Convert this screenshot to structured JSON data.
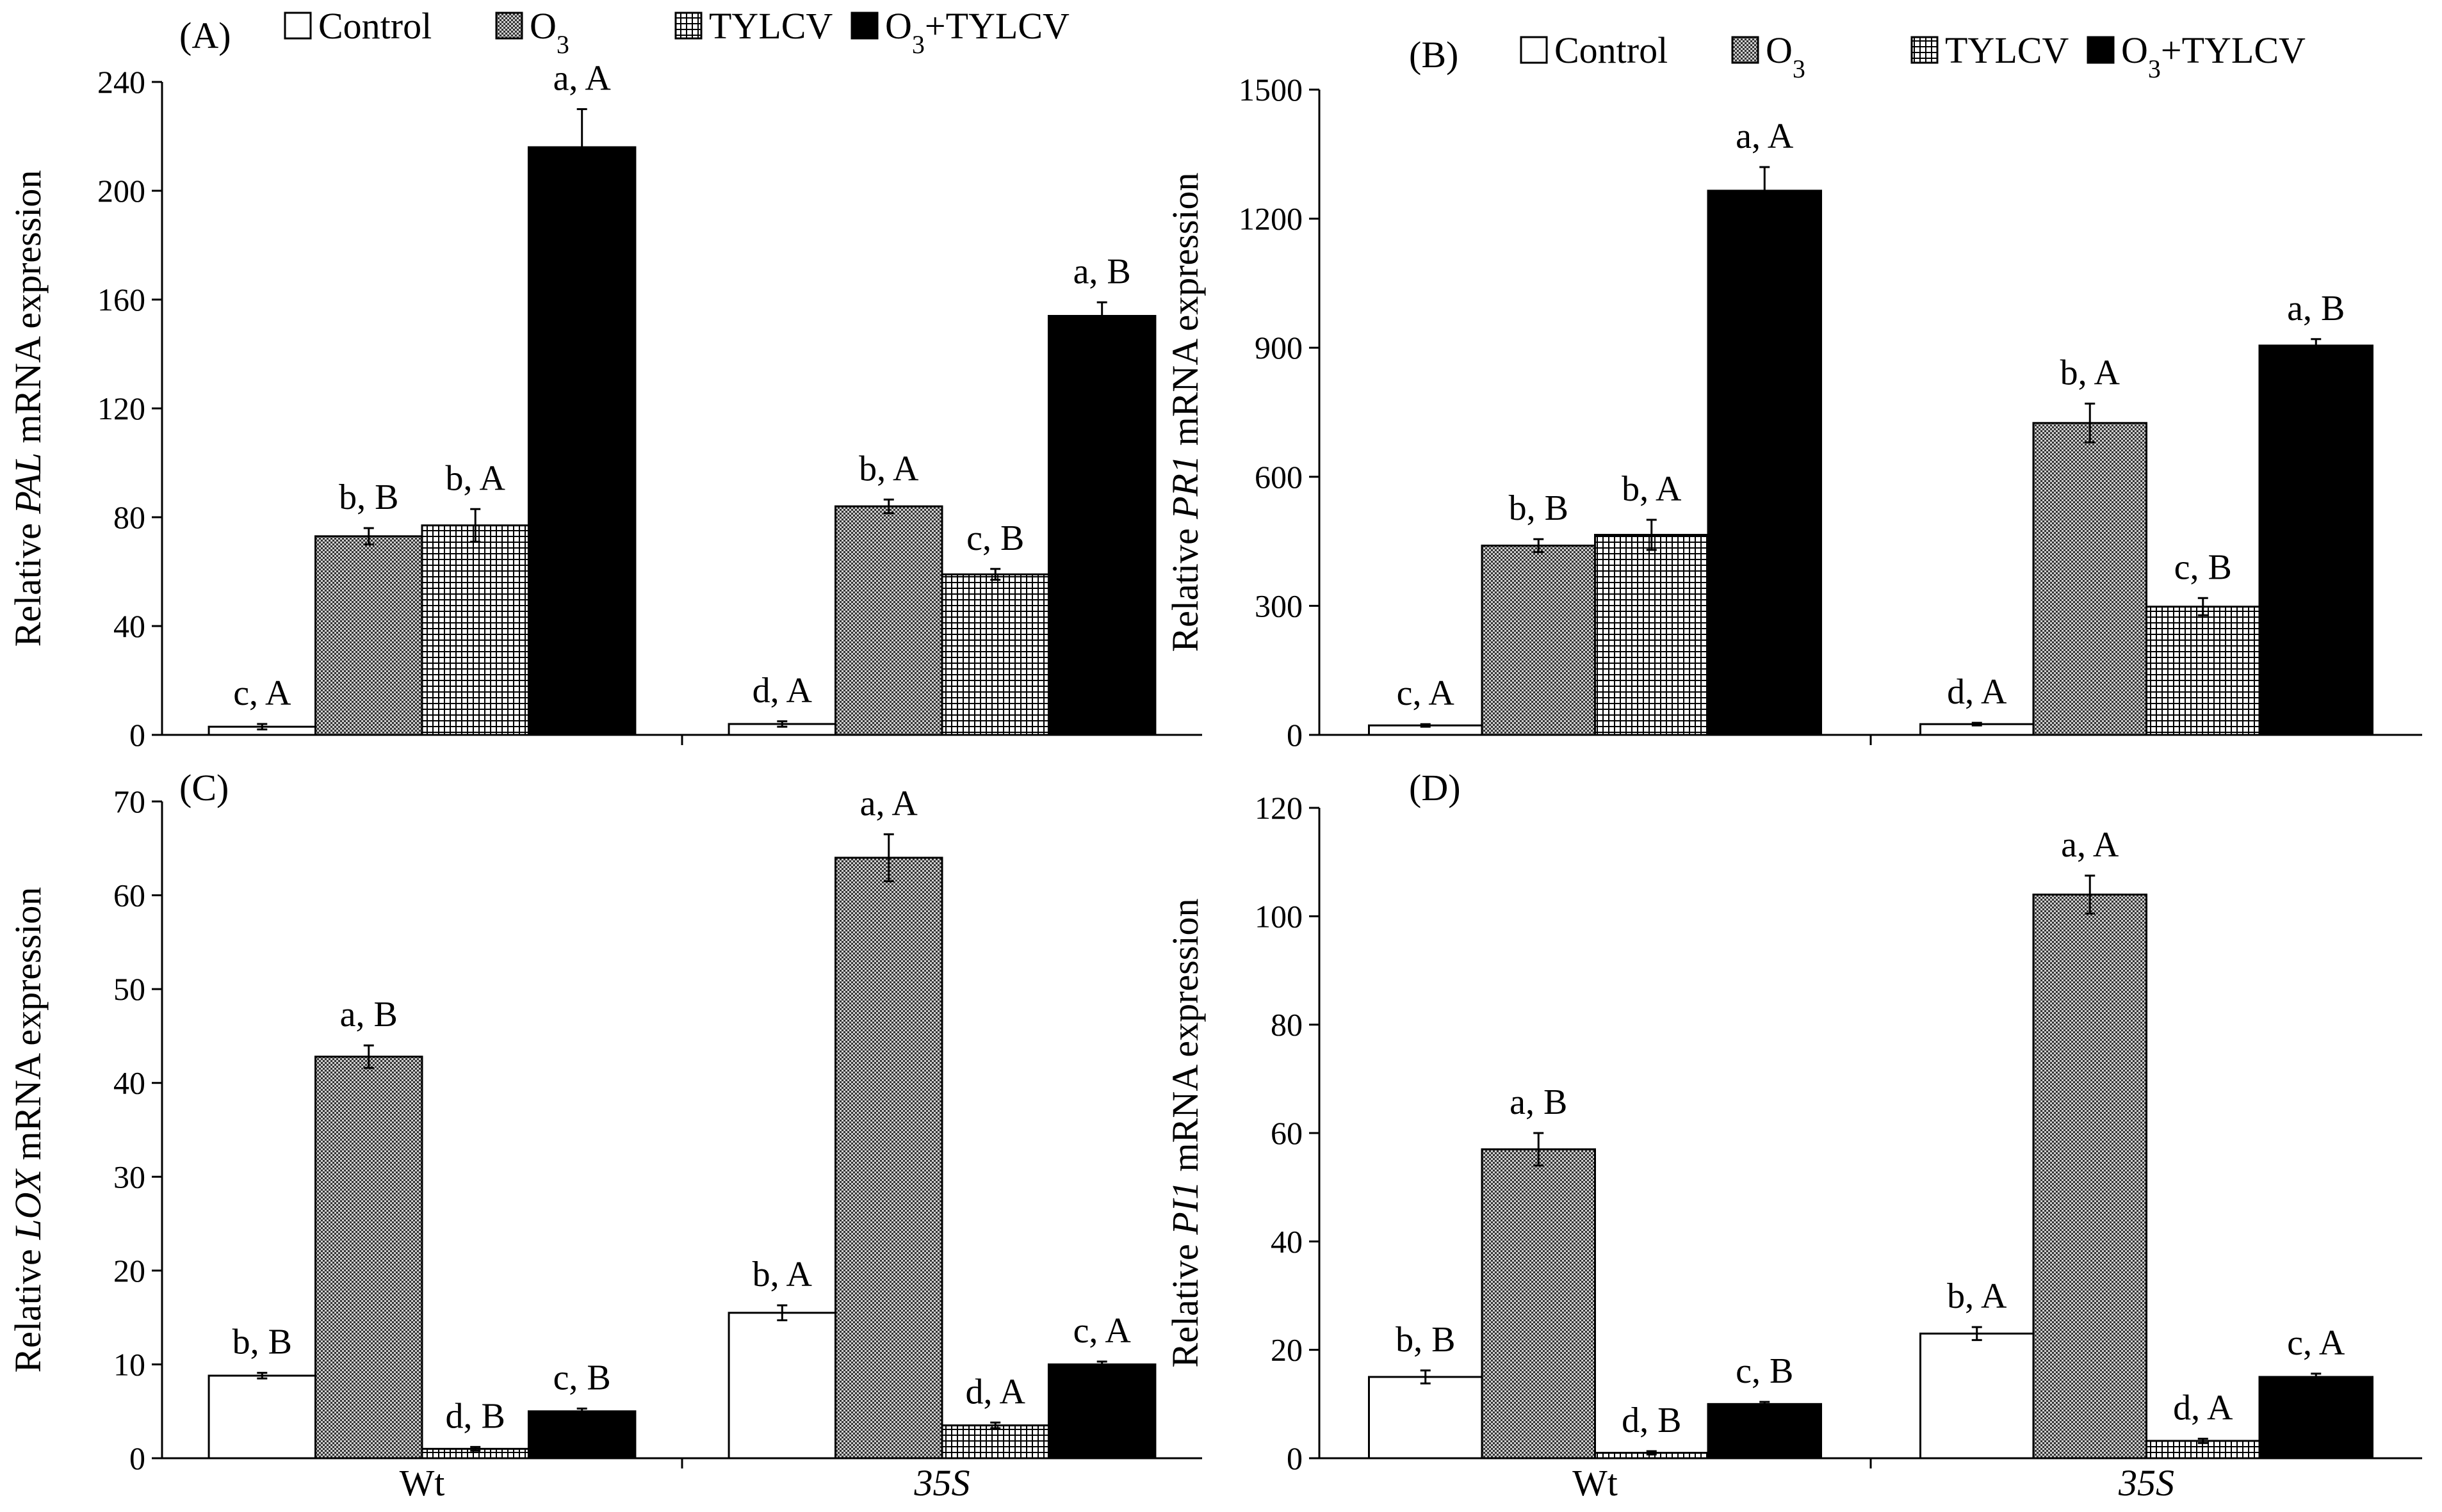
{
  "chart_data": [
    {
      "type": "bar",
      "panel_label": "(A)",
      "ylabel_prefix": "Relative ",
      "ylabel_gene": "PAL",
      "ylabel_suffix": " mRNA expression",
      "ylim": [
        0,
        240
      ],
      "yticks": [
        "0",
        "40",
        "80",
        "120",
        "160",
        "200",
        "240"
      ],
      "categories": [
        "Wt",
        "35S"
      ],
      "show_xlabels": false,
      "series": [
        {
          "name": "Control",
          "values": [
            3,
            4
          ],
          "errors": [
            1,
            1
          ],
          "sig": [
            "c, A",
            "d, A"
          ]
        },
        {
          "name": "O3",
          "values": [
            73,
            84
          ],
          "errors": [
            3,
            2.5
          ],
          "sig": [
            "b, B",
            "b, A"
          ]
        },
        {
          "name": "TYLCV",
          "values": [
            77,
            59
          ],
          "errors": [
            6,
            2
          ],
          "sig": [
            "b, A",
            "c, B"
          ]
        },
        {
          "name": "O3+TYLCV",
          "values": [
            216,
            154
          ],
          "errors": [
            14,
            5
          ],
          "sig": [
            "a, A",
            "a, B"
          ]
        }
      ]
    },
    {
      "type": "bar",
      "panel_label": "(B)",
      "ylabel_prefix": "Relative ",
      "ylabel_gene": "PR1",
      "ylabel_suffix": " mRNA expression",
      "ylim": [
        0,
        1500
      ],
      "yticks": [
        "0",
        "300",
        "600",
        "900",
        "1200",
        "1500"
      ],
      "categories": [
        "Wt",
        "35S"
      ],
      "show_xlabels": false,
      "series": [
        {
          "name": "Control",
          "values": [
            22,
            25
          ],
          "errors": [
            3,
            3
          ],
          "sig": [
            "c, A",
            "d, A"
          ]
        },
        {
          "name": "O3",
          "values": [
            440,
            725
          ],
          "errors": [
            15,
            45
          ],
          "sig": [
            "b, B",
            "b, A"
          ]
        },
        {
          "name": "TYLCV",
          "values": [
            465,
            298
          ],
          "errors": [
            35,
            20
          ],
          "sig": [
            "b, A",
            "c, B"
          ]
        },
        {
          "name": "O3+TYLCV",
          "values": [
            1265,
            905
          ],
          "errors": [
            55,
            15
          ],
          "sig": [
            "a, A",
            "a, B"
          ]
        }
      ]
    },
    {
      "type": "bar",
      "panel_label": "(C)",
      "ylabel_prefix": "Relative ",
      "ylabel_gene": "LOX",
      "ylabel_suffix": " mRNA expression",
      "ylim": [
        0,
        70
      ],
      "yticks": [
        "0",
        "10",
        "20",
        "30",
        "40",
        "50",
        "60",
        "70"
      ],
      "categories": [
        "Wt",
        "35S"
      ],
      "show_xlabels": true,
      "series": [
        {
          "name": "Control",
          "values": [
            8.8,
            15.5
          ],
          "errors": [
            0.3,
            0.8
          ],
          "sig": [
            "b, B",
            "b, A"
          ]
        },
        {
          "name": "O3",
          "values": [
            42.8,
            64
          ],
          "errors": [
            1.2,
            2.5
          ],
          "sig": [
            "a, B",
            "a, A"
          ]
        },
        {
          "name": "TYLCV",
          "values": [
            1,
            3.5
          ],
          "errors": [
            0.2,
            0.3
          ],
          "sig": [
            "d, B",
            "d, A"
          ]
        },
        {
          "name": "O3+TYLCV",
          "values": [
            5,
            10
          ],
          "errors": [
            0.3,
            0.3
          ],
          "sig": [
            "c, B",
            "c, A"
          ]
        }
      ]
    },
    {
      "type": "bar",
      "panel_label": "(D)",
      "ylabel_prefix": "Relative ",
      "ylabel_gene": "PI1",
      "ylabel_suffix": " mRNA expression",
      "ylim": [
        0,
        120
      ],
      "yticks": [
        "0",
        "20",
        "40",
        "60",
        "80",
        "100",
        "120"
      ],
      "categories": [
        "Wt",
        "35S"
      ],
      "show_xlabels": true,
      "series": [
        {
          "name": "Control",
          "values": [
            15,
            23
          ],
          "errors": [
            1.2,
            1.2
          ],
          "sig": [
            "b, B",
            "b, A"
          ]
        },
        {
          "name": "O3",
          "values": [
            57,
            104
          ],
          "errors": [
            3,
            3.5
          ],
          "sig": [
            "a, B",
            "a, A"
          ]
        },
        {
          "name": "TYLCV",
          "values": [
            1,
            3.2
          ],
          "errors": [
            0.3,
            0.4
          ],
          "sig": [
            "d, B",
            "d, A"
          ]
        },
        {
          "name": "O3+TYLCV",
          "values": [
            10,
            15
          ],
          "errors": [
            0.4,
            0.6
          ],
          "sig": [
            "c, B",
            "c, A"
          ]
        }
      ]
    }
  ],
  "legend": {
    "placement": "top",
    "items": [
      {
        "label": "Control",
        "base": "Control",
        "sub": "",
        "rest": ""
      },
      {
        "label": "O3",
        "base": "O",
        "sub": "3",
        "rest": ""
      },
      {
        "label": "TYLCV",
        "base": "TYLCV",
        "sub": "",
        "rest": ""
      },
      {
        "label": "O3+TYLCV",
        "base": "O",
        "sub": "3",
        "rest": "+TYLCV"
      }
    ]
  },
  "styles": {
    "fills": [
      "#ffffff",
      "url(#pat-o3)",
      "url(#pat-grid)",
      "#000000"
    ],
    "stroke": "#000000"
  }
}
